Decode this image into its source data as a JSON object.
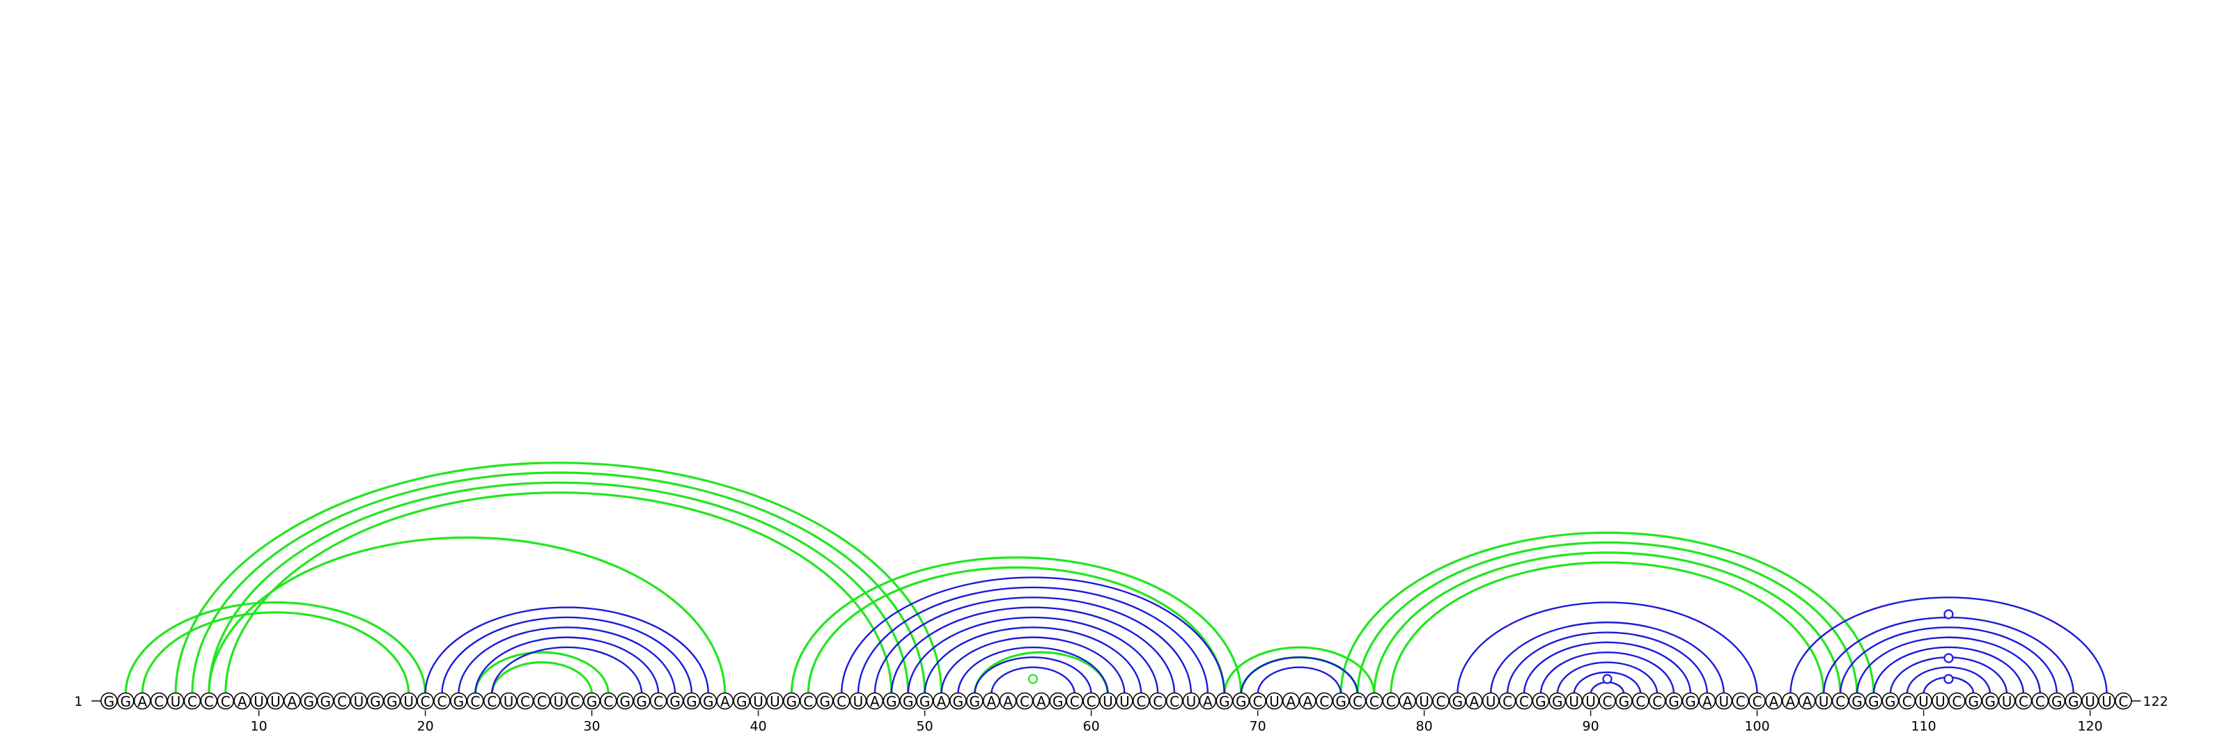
{
  "sequence": "GGACUCCCAUUAGGCUGGUCCGCCUCCUCGCGGCGGGAGUUGCGCUAGGGAGGAACAGCCUUCCCUAGGCUAACGCCCAUCGAUCCGGUUCGCCGGAUCCAAAUCGGGCUUCGGUCCGGUUC",
  "start_label": "1",
  "end_label": "122",
  "tick_labels": [
    "10",
    "20",
    "30",
    "40",
    "50",
    "60",
    "70",
    "80",
    "90",
    "100",
    "110",
    "120"
  ],
  "colors": {
    "blue": "#1a1adb",
    "green": "#22e61e"
  },
  "blue_pairs": [
    [
      20,
      37
    ],
    [
      21,
      36
    ],
    [
      22,
      35
    ],
    [
      23,
      34
    ],
    [
      24,
      33
    ],
    [
      45,
      68
    ],
    [
      46,
      67
    ],
    [
      47,
      66
    ],
    [
      48,
      65
    ],
    [
      49,
      64
    ],
    [
      50,
      63
    ],
    [
      51,
      62
    ],
    [
      52,
      61
    ],
    [
      53,
      60
    ],
    [
      54,
      59
    ],
    [
      69,
      76
    ],
    [
      70,
      75
    ],
    [
      82,
      100
    ],
    [
      84,
      98
    ],
    [
      85,
      97
    ],
    [
      86,
      96
    ],
    [
      87,
      95
    ],
    [
      88,
      94
    ],
    [
      89,
      93
    ],
    [
      90,
      92
    ],
    [
      102,
      121
    ],
    [
      104,
      119
    ],
    [
      105,
      118
    ],
    [
      106,
      117
    ],
    [
      107,
      116
    ],
    [
      108,
      115
    ],
    [
      109,
      114
    ],
    [
      110,
      113
    ]
  ],
  "green_pairs": [
    [
      2,
      20
    ],
    [
      3,
      19
    ],
    [
      5,
      51
    ],
    [
      6,
      50
    ],
    [
      7,
      49
    ],
    [
      8,
      48
    ],
    [
      7,
      38
    ],
    [
      23,
      31
    ],
    [
      24,
      30
    ],
    [
      42,
      69
    ],
    [
      43,
      68
    ],
    [
      53,
      61
    ],
    [
      68,
      77
    ],
    [
      69,
      76
    ],
    [
      75,
      107
    ],
    [
      76,
      106
    ],
    [
      77,
      105
    ],
    [
      78,
      104
    ]
  ],
  "markers": [
    {
      "pos": 56.5,
      "color": "green"
    },
    {
      "pos": 91,
      "color": "blue"
    },
    {
      "pos": 111.5,
      "color": "blue"
    },
    {
      "pos": 111.5,
      "color": "blue"
    },
    {
      "pos": 111.5,
      "color": "blue"
    }
  ]
}
